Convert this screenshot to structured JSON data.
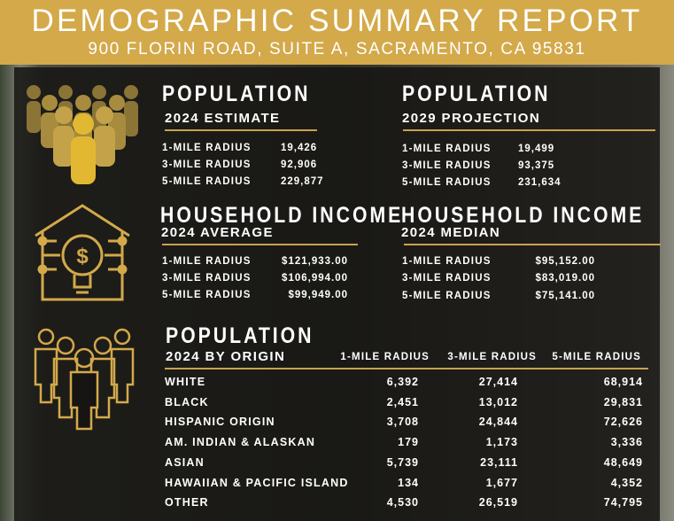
{
  "header": {
    "title": "DEMOGRAPHIC SUMMARY REPORT",
    "address": "900 FLORIN ROAD, SUITE A, SACRAMENTO, CA 95831"
  },
  "colors": {
    "gold": "#d3a94a",
    "panel": "#161513",
    "text": "#ffffff"
  },
  "icons": [
    "people-group-icon",
    "house-lightbulb-dollar-icon",
    "people-outline-icon"
  ],
  "population": {
    "title": "POPULATION",
    "estimate": {
      "subtitle": "2024 ESTIMATE",
      "rows": [
        {
          "label": "1-MILE RADIUS",
          "value": "19,426"
        },
        {
          "label": "3-MILE RADIUS",
          "value": "92,906"
        },
        {
          "label": "5-MILE RADIUS",
          "value": "229,877"
        }
      ]
    },
    "projection": {
      "subtitle": "2029 PROJECTION",
      "rows": [
        {
          "label": "1-MILE RADIUS",
          "value": "19,499"
        },
        {
          "label": "3-MILE RADIUS",
          "value": "93,375"
        },
        {
          "label": "5-MILE RADIUS",
          "value": "231,634"
        }
      ]
    }
  },
  "income": {
    "title": "HOUSEHOLD INCOME",
    "average": {
      "subtitle": "2024 AVERAGE",
      "rows": [
        {
          "label": "1-MILE RADIUS",
          "value": "$121,933.00"
        },
        {
          "label": "3-MILE RADIUS",
          "value": "$106,994.00"
        },
        {
          "label": "5-MILE RADIUS",
          "value": "$99,949.00"
        }
      ]
    },
    "median": {
      "subtitle": "2024 MEDIAN",
      "rows": [
        {
          "label": "1-MILE RADIUS",
          "value": "$95,152.00"
        },
        {
          "label": "3-MILE RADIUS",
          "value": "$83,019.00"
        },
        {
          "label": "5-MILE RADIUS",
          "value": "$75,141.00"
        }
      ]
    }
  },
  "origin": {
    "title": "POPULATION",
    "subtitle": "2024 BY ORIGIN",
    "columns": [
      "1-MILE RADIUS",
      "3-MILE RADIUS",
      "5-MILE RADIUS"
    ],
    "rows": [
      {
        "label": "WHITE",
        "values": [
          "6,392",
          "27,414",
          "68,914"
        ]
      },
      {
        "label": "BLACK",
        "values": [
          "2,451",
          "13,012",
          "29,831"
        ]
      },
      {
        "label": "HISPANIC ORIGIN",
        "values": [
          "3,708",
          "24,844",
          "72,626"
        ]
      },
      {
        "label": "AM. INDIAN & ALASKAN",
        "values": [
          "179",
          "1,173",
          "3,336"
        ]
      },
      {
        "label": "ASIAN",
        "values": [
          "5,739",
          "23,111",
          "48,649"
        ]
      },
      {
        "label": "HAWAIIAN & PACIFIC ISLAND",
        "values": [
          "134",
          "1,677",
          "4,352"
        ]
      },
      {
        "label": "OTHER",
        "values": [
          "4,530",
          "26,519",
          "74,795"
        ]
      }
    ]
  }
}
